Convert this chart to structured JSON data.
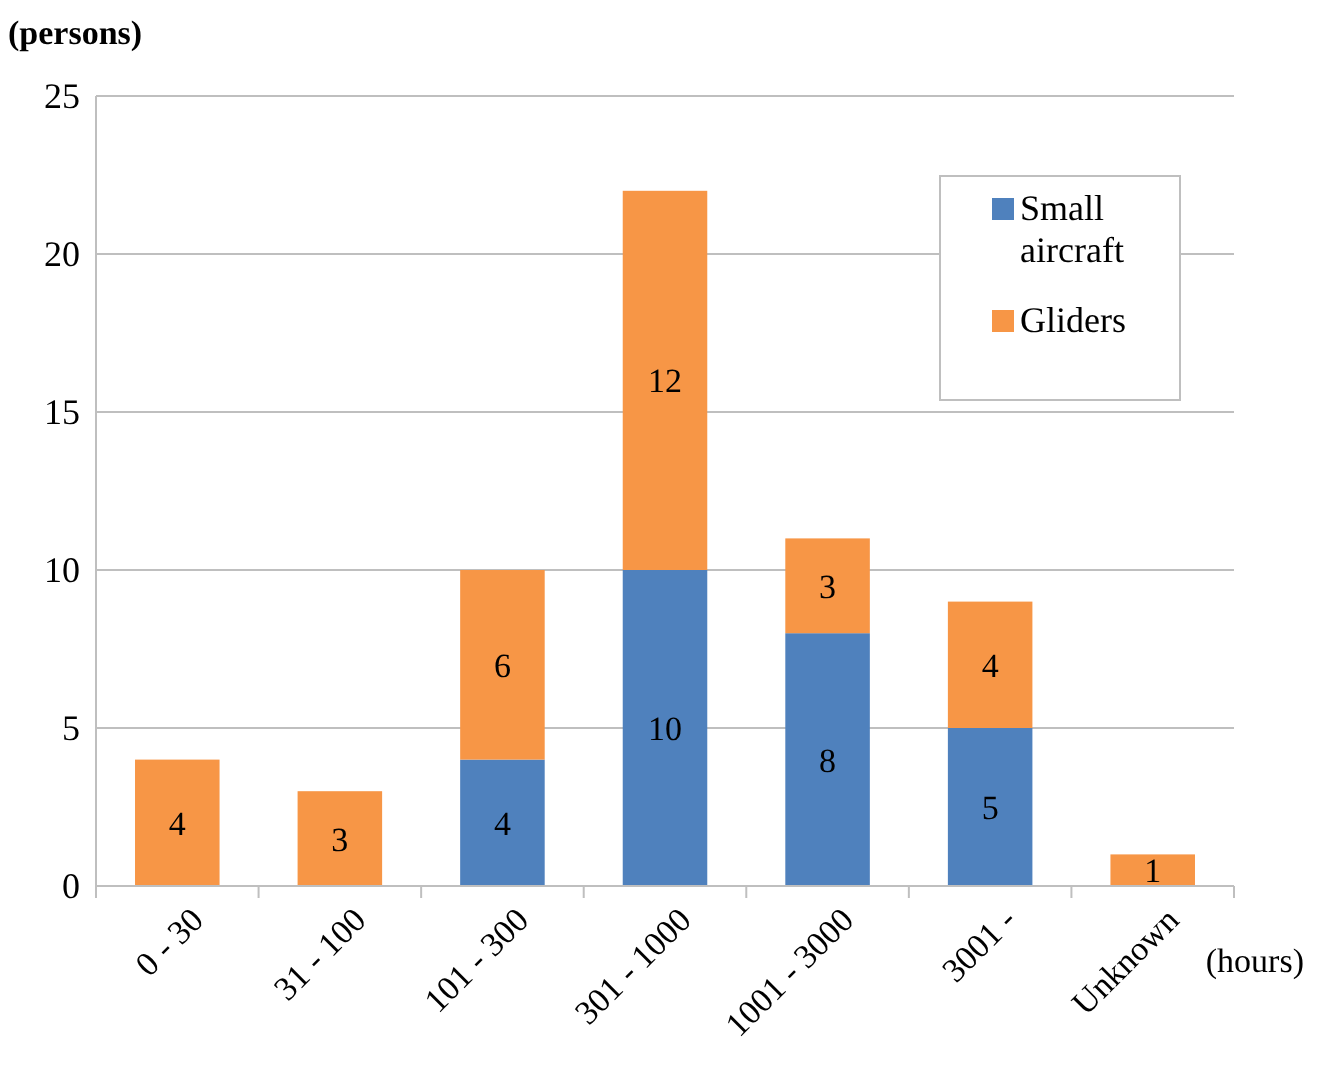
{
  "chart_data": {
    "type": "bar",
    "stacked": true,
    "ylabel": "(persons)",
    "xlabel": "(hours)",
    "categories": [
      "0 - 30",
      "31 - 100",
      "101 - 300",
      "301 - 1000",
      "1001 - 3000",
      "3001 -",
      "Unknown"
    ],
    "series": [
      {
        "name": "Small aircraft",
        "color": "#4f81bd",
        "values": [
          null,
          null,
          4,
          10,
          8,
          5,
          null
        ]
      },
      {
        "name": "Gliders",
        "color": "#f79646",
        "values": [
          4,
          3,
          6,
          12,
          3,
          4,
          1
        ]
      }
    ],
    "ylim": [
      0,
      25
    ],
    "yticks": [
      0,
      5,
      10,
      15,
      20,
      25
    ],
    "grid": "y",
    "legend": "top right",
    "data_labels": true
  }
}
